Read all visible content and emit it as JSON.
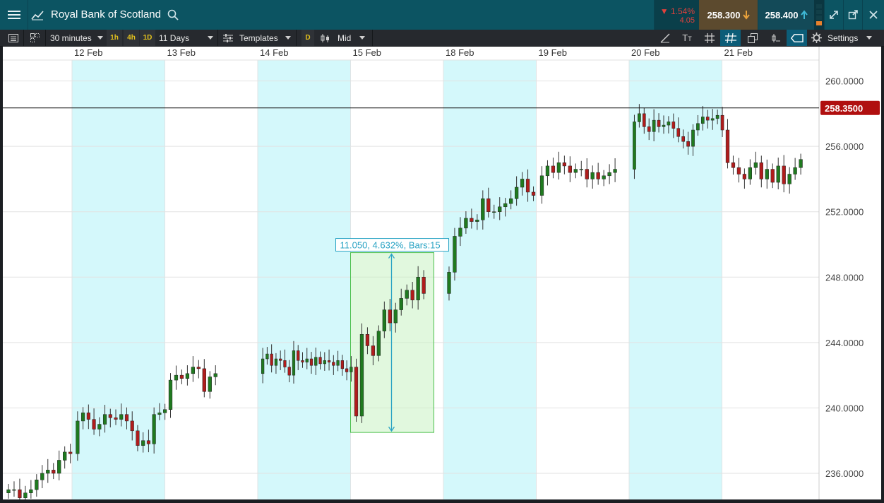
{
  "title_bar": {
    "instrument": "Royal Bank of Scotland",
    "change_pct": "1.54%",
    "change_abs": "4.05",
    "sell_price": "258.300",
    "buy_price": "258.400",
    "icons": [
      "menu-icon",
      "line-chart-icon",
      "search-icon",
      "arrow-down-icon",
      "arrow-up-icon",
      "volume-bars-icon",
      "expand-icon",
      "popout-icon",
      "close-icon"
    ]
  },
  "toolbar": {
    "interval": "30 minutes",
    "quick_1h": "1h",
    "quick_4h": "4h",
    "quick_1d": "1D",
    "range": "11 Days",
    "templates": "Templates",
    "d_badge": "D",
    "price_type": "Mid",
    "settings": "Settings"
  },
  "chart_data": {
    "type": "candlestick",
    "x_labels": [
      "12 Feb",
      "13 Feb",
      "14 Feb",
      "15 Feb",
      "18 Feb",
      "19 Feb",
      "20 Feb",
      "21 Feb"
    ],
    "y_ticks": [
      "260.0000",
      "256.0000",
      "252.0000",
      "248.0000",
      "244.0000",
      "240.0000",
      "236.0000"
    ],
    "ylim": [
      234.4,
      262.1
    ],
    "current_price": "258.3500",
    "measurement_label": "11.050, 4.632%, Bars:15",
    "measurement": {
      "change": 11.05,
      "percent": 4.632,
      "bars": 15,
      "low": 238.5,
      "high": 249.5
    },
    "colors": {
      "up": "#1f7a1f",
      "down": "#b01c1c",
      "shade": "#d4f8fb",
      "price_tag": "#b00f0f"
    },
    "closes": [
      [
        235.0,
        235.0,
        234.5,
        234.8,
        235.0,
        235.6,
        236.0,
        236.2,
        236.0,
        236.8,
        237.3,
        237.2
      ],
      [
        239.2,
        239.7,
        239.3,
        238.7,
        239.0,
        239.6,
        239.4,
        239.3,
        239.6,
        239.2,
        238.6,
        237.7,
        238.0,
        237.8,
        239.6,
        239.7,
        239.9
      ],
      [
        241.7,
        242.0,
        241.8,
        242.1,
        242.5,
        242.4,
        241.0,
        241.9,
        242.1
      ],
      [
        243.0,
        243.3,
        242.6,
        243.0,
        242.9,
        242.5,
        242.0,
        243.5,
        242.9,
        242.8,
        243.0,
        242.6,
        243.1,
        242.7,
        242.9,
        242.8,
        242.6,
        242.9,
        242.4,
        242.2,
        242.5
      ],
      [
        239.5,
        244.5,
        243.8,
        243.2,
        244.7,
        246.0,
        245.2,
        246.0,
        246.7,
        247.2,
        246.6,
        248.0,
        247.0
      ],
      [
        248.3,
        250.5,
        251.0,
        251.6,
        251.4,
        251.5,
        252.8,
        252.0,
        252.0,
        252.3,
        252.5,
        252.8,
        253.5,
        254.0,
        253.2,
        253.0
      ],
      [
        254.2,
        254.8,
        254.4,
        255.0,
        254.8,
        254.4,
        254.6,
        254.6,
        254.0,
        254.4,
        254.0,
        254.2,
        254.4,
        254.6
      ],
      [
        257.5,
        258.0,
        257.2,
        256.9,
        257.6,
        257.2,
        257.3,
        257.5,
        257.1,
        256.6,
        256.3,
        256.0,
        257.0,
        257.4,
        257.8,
        257.6,
        257.7,
        257.9,
        257.0
      ],
      [
        255.0,
        254.7,
        254.3,
        254.0,
        254.7,
        255.0,
        254.0,
        254.6,
        253.8,
        254.8,
        253.7,
        254.3,
        254.7,
        255.2
      ]
    ]
  }
}
